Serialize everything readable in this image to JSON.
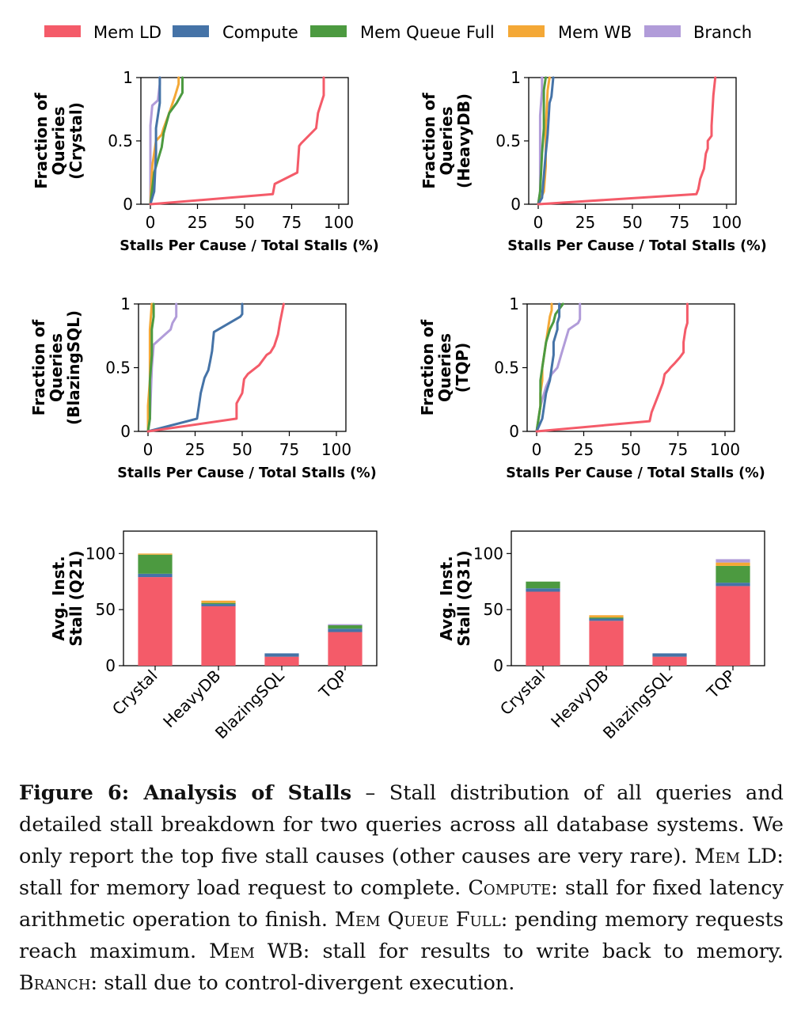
{
  "colors": {
    "Mem LD": "#f45b69",
    "Compute": "#4573a7",
    "Mem Queue Full": "#4c9a40",
    "Mem WB": "#f4a836",
    "Branch": "#b19cd9"
  },
  "legend": [
    "Mem LD",
    "Compute",
    "Mem Queue Full",
    "Mem WB",
    "Branch"
  ],
  "chart_data": [
    {
      "type": "line",
      "id": "cdf-crystal",
      "ylabel": "Fraction of Queries (Crystal)",
      "xlabel": "Stalls Per Cause / Total Stalls (%)",
      "xlim": [
        0,
        100
      ],
      "ylim": [
        0,
        1
      ],
      "xticks": [
        0,
        25,
        50,
        75,
        100
      ],
      "yticks": [
        0,
        0.5,
        1
      ],
      "series": [
        {
          "name": "Mem LD",
          "x": [
            0,
            65,
            66,
            78,
            79,
            80,
            88,
            89,
            92,
            92
          ],
          "y": [
            0,
            0.08,
            0.16,
            0.25,
            0.46,
            0.48,
            0.6,
            0.72,
            0.86,
            1
          ]
        },
        {
          "name": "Compute",
          "x": [
            0,
            1,
            2,
            3,
            3,
            5,
            5,
            5
          ],
          "y": [
            0,
            0.05,
            0.1,
            0.4,
            0.6,
            0.8,
            0.95,
            1
          ]
        },
        {
          "name": "Mem Queue Full",
          "x": [
            0,
            2,
            5,
            6,
            7,
            10,
            14,
            17,
            17
          ],
          "y": [
            0,
            0.25,
            0.4,
            0.45,
            0.56,
            0.72,
            0.8,
            0.88,
            1
          ]
        },
        {
          "name": "Mem WB",
          "x": [
            0,
            1,
            3,
            6,
            7,
            10,
            13,
            15,
            15
          ],
          "y": [
            0,
            0.3,
            0.5,
            0.55,
            0.6,
            0.72,
            0.85,
            0.95,
            1
          ]
        },
        {
          "name": "Branch",
          "x": [
            0,
            0,
            0,
            1,
            4,
            5,
            5
          ],
          "y": [
            0,
            0.3,
            0.62,
            0.78,
            0.82,
            0.95,
            1
          ]
        }
      ]
    },
    {
      "type": "line",
      "id": "cdf-heavydb",
      "ylabel": "Fraction of Queries (HeavyDB)",
      "xlabel": "Stalls Per Cause / Total Stalls (%)",
      "xlim": [
        0,
        100
      ],
      "ylim": [
        0,
        1
      ],
      "xticks": [
        0,
        25,
        50,
        75,
        100
      ],
      "yticks": [
        0,
        0.5,
        1
      ],
      "series": [
        {
          "name": "Mem LD",
          "x": [
            0,
            84,
            85,
            86,
            88,
            89,
            90,
            90,
            92,
            92,
            93,
            94
          ],
          "y": [
            0,
            0.08,
            0.12,
            0.2,
            0.28,
            0.4,
            0.44,
            0.5,
            0.54,
            0.62,
            0.86,
            1
          ]
        },
        {
          "name": "Compute",
          "x": [
            0,
            2,
            4,
            5,
            6,
            7,
            8
          ],
          "y": [
            0,
            0.05,
            0.4,
            0.55,
            0.8,
            0.85,
            1
          ]
        },
        {
          "name": "Mem Queue Full",
          "x": [
            0,
            1,
            2,
            3,
            3,
            4
          ],
          "y": [
            0,
            0.1,
            0.4,
            0.6,
            0.9,
            1
          ]
        },
        {
          "name": "Mem WB",
          "x": [
            0,
            3,
            4,
            4,
            5,
            6
          ],
          "y": [
            0,
            0.1,
            0.3,
            0.6,
            0.9,
            1
          ]
        },
        {
          "name": "Branch",
          "x": [
            0,
            1,
            1,
            1,
            2,
            2
          ],
          "y": [
            0,
            0.1,
            0.4,
            0.7,
            0.9,
            1
          ]
        }
      ]
    },
    {
      "type": "line",
      "id": "cdf-blazingsql",
      "ylabel": "Fraction of Queries (BlazingSQL)",
      "xlabel": "Stalls Per Cause / Total Stalls (%)",
      "xlim": [
        0,
        100
      ],
      "ylim": [
        0,
        1
      ],
      "xticks": [
        0,
        25,
        50,
        75,
        100
      ],
      "yticks": [
        0,
        0.5,
        1
      ],
      "series": [
        {
          "name": "Mem LD",
          "x": [
            0,
            47,
            47,
            50,
            51,
            53,
            59,
            63,
            65,
            67,
            69,
            70,
            72
          ],
          "y": [
            0,
            0.1,
            0.22,
            0.3,
            0.41,
            0.45,
            0.52,
            0.6,
            0.62,
            0.67,
            0.76,
            0.85,
            1
          ]
        },
        {
          "name": "Compute",
          "x": [
            0,
            26,
            27,
            28,
            29,
            30,
            32,
            33,
            34,
            35,
            49,
            50,
            50
          ],
          "y": [
            0,
            0.1,
            0.2,
            0.3,
            0.36,
            0.42,
            0.48,
            0.55,
            0.63,
            0.78,
            0.9,
            0.92,
            1
          ]
        },
        {
          "name": "Mem Queue Full",
          "x": [
            0,
            1,
            1,
            2,
            2,
            3,
            3
          ],
          "y": [
            0,
            0.1,
            0.4,
            0.6,
            0.8,
            0.9,
            1
          ]
        },
        {
          "name": "Mem WB",
          "x": [
            0,
            0,
            1,
            1,
            2
          ],
          "y": [
            0,
            0.2,
            0.4,
            0.8,
            1
          ]
        },
        {
          "name": "Branch",
          "x": [
            0,
            1,
            2,
            3,
            9,
            12,
            13,
            15,
            15
          ],
          "y": [
            0,
            0.1,
            0.5,
            0.68,
            0.76,
            0.8,
            0.85,
            0.9,
            1
          ]
        }
      ]
    },
    {
      "type": "line",
      "id": "cdf-tqp",
      "ylabel": "Fraction of Queries (TQP)",
      "xlabel": "Stalls Per Cause / Total Stalls (%)",
      "xlim": [
        0,
        100
      ],
      "ylim": [
        0,
        1
      ],
      "xticks": [
        0,
        25,
        50,
        75,
        100
      ],
      "yticks": [
        0,
        0.5,
        1
      ],
      "series": [
        {
          "name": "Mem LD",
          "x": [
            0,
            60,
            61,
            65,
            67,
            68,
            70,
            71,
            73,
            76,
            78,
            78,
            79,
            80,
            80
          ],
          "y": [
            0,
            0.08,
            0.15,
            0.3,
            0.38,
            0.45,
            0.48,
            0.5,
            0.53,
            0.58,
            0.62,
            0.7,
            0.8,
            0.85,
            1
          ]
        },
        {
          "name": "Compute",
          "x": [
            0,
            3,
            4,
            5,
            7,
            8,
            9,
            9,
            11,
            11,
            12,
            12
          ],
          "y": [
            0,
            0.1,
            0.2,
            0.3,
            0.4,
            0.5,
            0.6,
            0.7,
            0.8,
            0.85,
            0.9,
            1
          ]
        },
        {
          "name": "Mem Queue Full",
          "x": [
            0,
            1,
            2,
            2,
            3,
            4,
            5,
            6,
            7,
            9,
            10,
            12,
            14
          ],
          "y": [
            0,
            0.1,
            0.2,
            0.4,
            0.5,
            0.6,
            0.7,
            0.75,
            0.8,
            0.86,
            0.92,
            0.96,
            1
          ]
        },
        {
          "name": "Mem WB",
          "x": [
            0,
            1,
            2,
            2,
            3,
            3,
            4,
            5,
            6,
            7,
            8,
            8
          ],
          "y": [
            0,
            0.1,
            0.2,
            0.3,
            0.4,
            0.5,
            0.6,
            0.7,
            0.8,
            0.9,
            0.95,
            1
          ]
        },
        {
          "name": "Branch",
          "x": [
            0,
            2,
            5,
            8,
            11,
            12,
            13,
            15,
            17,
            22,
            23,
            23
          ],
          "y": [
            0,
            0.2,
            0.35,
            0.45,
            0.5,
            0.55,
            0.6,
            0.7,
            0.8,
            0.85,
            0.88,
            1
          ]
        }
      ]
    },
    {
      "type": "bar",
      "id": "bar-q21",
      "stacked": true,
      "ylabel": "Avg. Inst. Stall (Q21)",
      "ylim": [
        0,
        120
      ],
      "yticks": [
        0,
        50,
        100
      ],
      "categories": [
        "Crystal",
        "HeavyDB",
        "BlazingSQL",
        "TQP"
      ],
      "series": [
        {
          "name": "Mem LD",
          "values": [
            79,
            53,
            8,
            30
          ]
        },
        {
          "name": "Compute",
          "values": [
            3,
            2,
            3,
            3
          ]
        },
        {
          "name": "Mem Queue Full",
          "values": [
            17,
            1,
            0,
            3
          ]
        },
        {
          "name": "Mem WB",
          "values": [
            1,
            2,
            0,
            0
          ]
        },
        {
          "name": "Branch",
          "values": [
            0,
            0,
            0,
            1
          ]
        }
      ]
    },
    {
      "type": "bar",
      "id": "bar-q31",
      "stacked": true,
      "ylabel": "Avg. Inst. Stall (Q31)",
      "ylim": [
        0,
        120
      ],
      "yticks": [
        0,
        50,
        100
      ],
      "categories": [
        "Crystal",
        "HeavyDB",
        "BlazingSQL",
        "TQP"
      ],
      "series": [
        {
          "name": "Mem LD",
          "values": [
            66,
            40,
            8,
            71
          ]
        },
        {
          "name": "Compute",
          "values": [
            3,
            2,
            3,
            3
          ]
        },
        {
          "name": "Mem Queue Full",
          "values": [
            6,
            1,
            0,
            15
          ]
        },
        {
          "name": "Mem WB",
          "values": [
            0,
            2,
            0,
            3
          ]
        },
        {
          "name": "Branch",
          "values": [
            0,
            0,
            0,
            3
          ]
        }
      ]
    }
  ],
  "caption": {
    "label": "Figure 6: Analysis of Stalls",
    "dash": " – ",
    "t1": "Stall distribution of all queries and detailed stall breakdown for two queries across all database systems. We only report the top five stall causes (other causes are very rare). ",
    "sc1": "Mem LD",
    "t2": ": stall for memory load request to complete. ",
    "sc2": "Compute",
    "t3": ": stall for fixed latency arithmetic operation to finish. ",
    "sc3": "Mem Queue Full",
    "t4": ": pending memory requests reach maximum. ",
    "sc4": "Mem WB",
    "t5": ": stall for results to write back to memory. ",
    "sc5": "Branch",
    "t6": ": stall due to control-divergent execution."
  }
}
